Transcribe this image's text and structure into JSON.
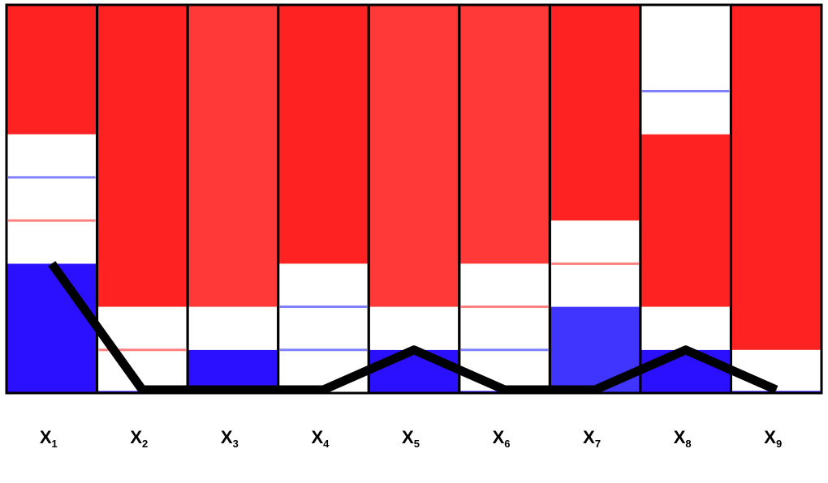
{
  "chart_data": {
    "type": "bar",
    "title": "",
    "xlabel": "",
    "ylabel": "",
    "ylim": [
      0,
      9
    ],
    "grid": false,
    "legend": "none",
    "colors": {
      "red_bright": "#ff2222",
      "red_soft": "#ff3838",
      "blue_deep": "#2a10ff",
      "blue_soft": "#4035ff",
      "white": "#ffffff",
      "line_red": "#ff8080",
      "line_blue": "#8080ff",
      "trace": "#000000",
      "border": "#000000"
    },
    "categories": [
      {
        "base": "X",
        "sub": "1"
      },
      {
        "base": "X",
        "sub": "2"
      },
      {
        "base": "X",
        "sub": "3"
      },
      {
        "base": "X",
        "sub": "4"
      },
      {
        "base": "X",
        "sub": "5"
      },
      {
        "base": "X",
        "sub": "6"
      },
      {
        "base": "X",
        "sub": "7"
      },
      {
        "base": "X",
        "sub": "8"
      },
      {
        "base": "X",
        "sub": "9"
      }
    ],
    "columns": [
      {
        "segments": [
          {
            "from": 0,
            "to": 3,
            "fill": "blue_deep"
          },
          {
            "from": 3,
            "to": 6,
            "fill": "white"
          },
          {
            "from": 6,
            "to": 9,
            "fill": "red_bright"
          }
        ],
        "lines": [
          {
            "y": 4,
            "color": "line_red"
          },
          {
            "y": 5,
            "color": "line_blue"
          }
        ]
      },
      {
        "segments": [
          {
            "from": 0,
            "to": 0.05,
            "fill": "blue_deep"
          },
          {
            "from": 0.05,
            "to": 2,
            "fill": "white"
          },
          {
            "from": 2,
            "to": 9,
            "fill": "red_bright"
          }
        ],
        "lines": [
          {
            "y": 1,
            "color": "line_red"
          }
        ]
      },
      {
        "segments": [
          {
            "from": 0,
            "to": 1,
            "fill": "blue_deep"
          },
          {
            "from": 1,
            "to": 2,
            "fill": "white"
          },
          {
            "from": 2,
            "to": 9,
            "fill": "red_soft"
          }
        ],
        "lines": []
      },
      {
        "segments": [
          {
            "from": 0,
            "to": 3,
            "fill": "white"
          },
          {
            "from": 3,
            "to": 9,
            "fill": "red_bright"
          }
        ],
        "lines": [
          {
            "y": 1,
            "color": "line_blue"
          },
          {
            "y": 2,
            "color": "line_blue"
          }
        ]
      },
      {
        "segments": [
          {
            "from": 0,
            "to": 1,
            "fill": "blue_deep"
          },
          {
            "from": 1,
            "to": 2,
            "fill": "white"
          },
          {
            "from": 2,
            "to": 9,
            "fill": "red_soft"
          }
        ],
        "lines": []
      },
      {
        "segments": [
          {
            "from": 0,
            "to": 0.05,
            "fill": "blue_deep"
          },
          {
            "from": 0.05,
            "to": 3,
            "fill": "white"
          },
          {
            "from": 3,
            "to": 9,
            "fill": "red_soft"
          }
        ],
        "lines": [
          {
            "y": 1,
            "color": "line_blue"
          },
          {
            "y": 2,
            "color": "line_red"
          }
        ]
      },
      {
        "segments": [
          {
            "from": 0,
            "to": 2,
            "fill": "blue_soft"
          },
          {
            "from": 2,
            "to": 4,
            "fill": "white"
          },
          {
            "from": 4,
            "to": 9,
            "fill": "red_bright"
          }
        ],
        "lines": [
          {
            "y": 3,
            "color": "line_red"
          }
        ]
      },
      {
        "segments": [
          {
            "from": 0,
            "to": 1,
            "fill": "blue_deep"
          },
          {
            "from": 1,
            "to": 2,
            "fill": "white"
          },
          {
            "from": 2,
            "to": 6,
            "fill": "red_bright"
          },
          {
            "from": 6,
            "to": 9,
            "fill": "white"
          }
        ],
        "lines": [
          {
            "y": 7,
            "color": "line_blue"
          }
        ]
      },
      {
        "segments": [
          {
            "from": 0,
            "to": 0.05,
            "fill": "blue_deep"
          },
          {
            "from": 0.05,
            "to": 1,
            "fill": "white"
          },
          {
            "from": 1,
            "to": 9,
            "fill": "red_bright"
          }
        ],
        "lines": []
      }
    ],
    "series": [
      {
        "values": [
          3,
          0,
          0,
          0,
          1,
          0,
          0,
          1,
          0
        ]
      }
    ]
  }
}
